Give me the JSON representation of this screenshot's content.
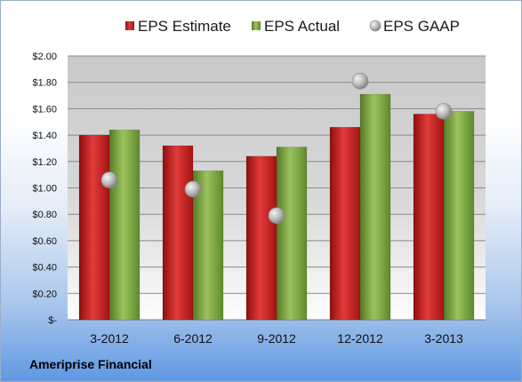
{
  "chart_data": {
    "type": "bar",
    "categories": [
      "3-2012",
      "6-2012",
      "9-2012",
      "12-2012",
      "3-2013"
    ],
    "series": [
      {
        "name": "EPS Estimate",
        "kind": "bar",
        "color": "#cc1f1f",
        "values": [
          1.4,
          1.32,
          1.24,
          1.46,
          1.56
        ]
      },
      {
        "name": "EPS Actual",
        "kind": "bar",
        "color": "#78a53a",
        "values": [
          1.44,
          1.13,
          1.31,
          1.71,
          1.58
        ]
      },
      {
        "name": "EPS GAAP",
        "kind": "marker",
        "color": "#a8a8a8",
        "values": [
          1.06,
          0.99,
          0.79,
          1.81,
          1.58
        ]
      }
    ],
    "yticks": [
      "$-",
      "$0.20",
      "$0.40",
      "$0.60",
      "$0.80",
      "$1.00",
      "$1.20",
      "$1.40",
      "$1.60",
      "$1.80",
      "$2.00"
    ],
    "ylim": [
      0,
      2.0
    ],
    "grid": true,
    "legend": "top"
  },
  "footer": {
    "company": "Ameriprise Financial"
  }
}
